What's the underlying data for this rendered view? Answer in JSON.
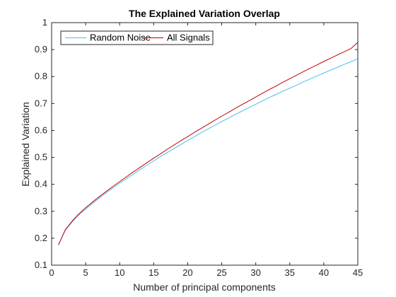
{
  "chart_data": {
    "type": "line",
    "title": "The Explained Variation Overlap",
    "xlabel": "Number of principal components",
    "ylabel": "Explained Variation",
    "xlim": [
      0,
      45
    ],
    "ylim": [
      0.1,
      1
    ],
    "xticks": [
      0,
      5,
      10,
      15,
      20,
      25,
      30,
      35,
      40,
      45
    ],
    "yticks": [
      0.1,
      0.2,
      0.3,
      0.4,
      0.5,
      0.6,
      0.7,
      0.8,
      0.9,
      1
    ],
    "xtick_labels": [
      "0",
      "5",
      "10",
      "15",
      "20",
      "25",
      "30",
      "35",
      "40",
      "45"
    ],
    "ytick_labels": [
      "0.1",
      "0.2",
      "0.3",
      "0.4",
      "0.5",
      "0.6",
      "0.7",
      "0.8",
      "0.9",
      "1"
    ],
    "grid": false,
    "legend_position": "top-left",
    "x": [
      1,
      2,
      3,
      4,
      5,
      6,
      7,
      8,
      9,
      10,
      11,
      12,
      13,
      14,
      15,
      16,
      17,
      18,
      19,
      20,
      21,
      22,
      23,
      24,
      25,
      26,
      27,
      28,
      29,
      30,
      31,
      32,
      33,
      34,
      35,
      36,
      37,
      38,
      39,
      40,
      41,
      42,
      43,
      44,
      45
    ],
    "series": [
      {
        "name": "Random Noise",
        "color": "#4dbeee",
        "values": [
          0.175,
          0.229,
          0.26,
          0.287,
          0.308,
          0.329,
          0.349,
          0.368,
          0.386,
          0.404,
          0.421,
          0.438,
          0.455,
          0.471,
          0.487,
          0.503,
          0.518,
          0.533,
          0.548,
          0.563,
          0.577,
          0.592,
          0.606,
          0.619,
          0.633,
          0.646,
          0.659,
          0.672,
          0.685,
          0.697,
          0.71,
          0.722,
          0.734,
          0.746,
          0.757,
          0.768,
          0.78,
          0.791,
          0.802,
          0.813,
          0.824,
          0.834,
          0.845,
          0.855,
          0.866
        ]
      },
      {
        "name": "All Signals",
        "color": "#c00000",
        "values": [
          0.175,
          0.231,
          0.263,
          0.29,
          0.313,
          0.334,
          0.354,
          0.373,
          0.392,
          0.41,
          0.428,
          0.446,
          0.463,
          0.48,
          0.497,
          0.513,
          0.53,
          0.546,
          0.562,
          0.577,
          0.593,
          0.608,
          0.623,
          0.638,
          0.653,
          0.667,
          0.682,
          0.696,
          0.71,
          0.724,
          0.738,
          0.752,
          0.765,
          0.779,
          0.792,
          0.805,
          0.818,
          0.831,
          0.843,
          0.856,
          0.868,
          0.88,
          0.892,
          0.904,
          0.927
        ]
      }
    ]
  }
}
